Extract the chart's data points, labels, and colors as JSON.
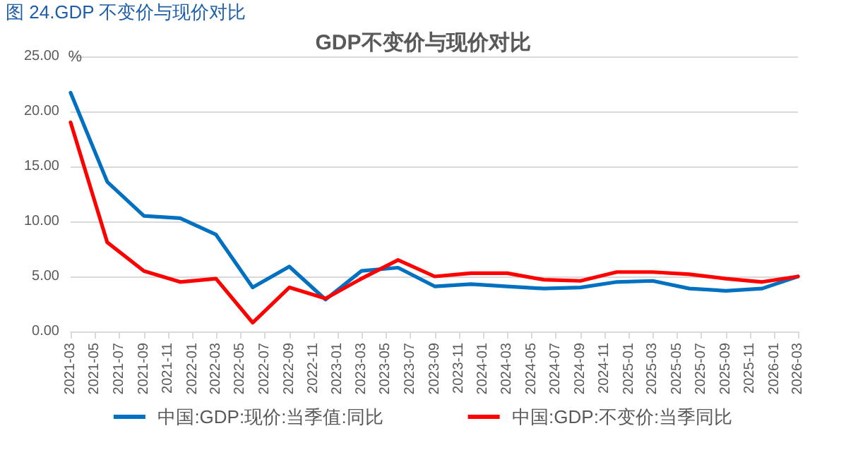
{
  "chart_data": {
    "type": "line",
    "title": "GDP不变价与现价对比",
    "ylabel": "%",
    "annotations": [
      "图 24.GDP 不变价与现价对比"
    ],
    "x": [
      "2021-03",
      "2021-06",
      "2021-09",
      "2021-12",
      "2022-03",
      "2022-06",
      "2022-09",
      "2022-12",
      "2023-03",
      "2023-06",
      "2023-09",
      "2023-12",
      "2024-03",
      "2024-06",
      "2024-09",
      "2024-12",
      "2025-03",
      "2025-06",
      "2025-09",
      "2025-12",
      "2026-03"
    ],
    "series": [
      {
        "name": "中国:GDP:现价:当季值:同比",
        "color": "#0070c0",
        "values": [
          21.7,
          13.6,
          10.5,
          10.3,
          8.8,
          4.0,
          5.9,
          2.9,
          5.5,
          5.8,
          4.1,
          4.3,
          4.1,
          3.9,
          4.0,
          4.5,
          4.6,
          3.9,
          3.7,
          3.9,
          5.0
        ]
      },
      {
        "name": "中国:GDP:不变价:当季同比",
        "color": "#ff0000",
        "values": [
          19.0,
          8.1,
          5.5,
          4.5,
          4.8,
          0.8,
          4.0,
          3.0,
          4.8,
          6.5,
          5.0,
          5.3,
          5.3,
          4.7,
          4.6,
          5.4,
          5.4,
          5.2,
          4.8,
          4.5,
          5.0
        ]
      }
    ],
    "xlim": [
      "2021-03",
      "2026-03"
    ],
    "xticks": [
      "2021-03",
      "2021-05",
      "2021-07",
      "2021-09",
      "2021-11",
      "2022-01",
      "2022-03",
      "2022-05",
      "2022-07",
      "2022-09",
      "2022-11",
      "2023-01",
      "2023-03",
      "2023-05",
      "2023-07",
      "2023-09",
      "2023-11",
      "2024-01",
      "2024-03",
      "2024-05",
      "2024-07",
      "2024-09",
      "2024-11",
      "2025-01",
      "2025-03",
      "2025-05",
      "2025-07",
      "2025-09",
      "2025-11",
      "2026-01",
      "2026-03"
    ],
    "ylim": [
      0,
      25
    ],
    "yticks": [
      {
        "value": 0,
        "label": "0.00"
      },
      {
        "value": 5,
        "label": "5.00"
      },
      {
        "value": 10,
        "label": "10.00"
      },
      {
        "value": 15,
        "label": "15.00"
      },
      {
        "value": 20,
        "label": "20.00"
      },
      {
        "value": 25,
        "label": "25.00"
      }
    ],
    "grid": "y",
    "legend": "bottom",
    "marker": "none",
    "line_style": "solid"
  }
}
